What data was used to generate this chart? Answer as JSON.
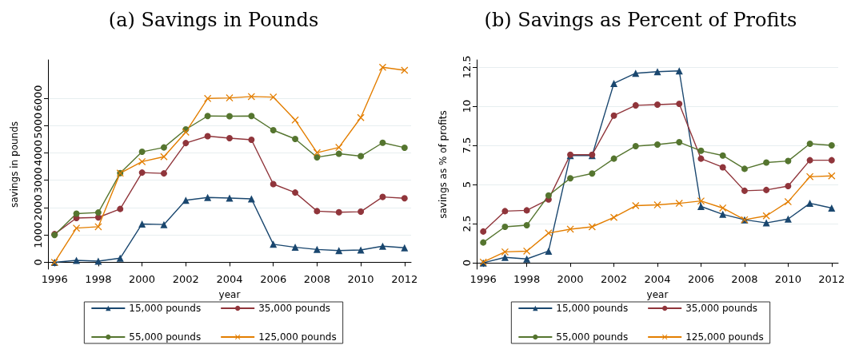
{
  "chart_data": [
    {
      "type": "line",
      "title": "(a) Savings in Pounds",
      "xlabel": "year",
      "ylabel": "savings in pounds",
      "x": [
        1996,
        1997,
        1998,
        1999,
        2000,
        2001,
        2002,
        2003,
        2004,
        2005,
        2006,
        2007,
        2008,
        2009,
        2010,
        2011,
        2012
      ],
      "series": [
        {
          "name": "15,000 pounds",
          "color": "#1a476f",
          "marker": "triangle",
          "values": [
            0,
            70,
            40,
            150,
            1400,
            1380,
            2270,
            2370,
            2350,
            2320,
            660,
            550,
            470,
            430,
            450,
            590,
            530
          ]
        },
        {
          "name": "35,000 pounds",
          "color": "#90353b",
          "marker": "circle",
          "values": [
            1030,
            1620,
            1640,
            1950,
            3280,
            3250,
            4360,
            4610,
            4540,
            4480,
            2860,
            2550,
            1870,
            1830,
            1850,
            2390,
            2340
          ]
        },
        {
          "name": "55,000 pounds",
          "color": "#55752f",
          "marker": "circle",
          "values": [
            1000,
            1780,
            1820,
            3260,
            4040,
            4200,
            4860,
            5350,
            5340,
            5350,
            4830,
            4510,
            3840,
            3970,
            3880,
            4370,
            4190
          ]
        },
        {
          "name": "125,000 pounds",
          "color": "#e37e00",
          "marker": "cross",
          "values": [
            0,
            1250,
            1300,
            3260,
            3680,
            3860,
            4760,
            5990,
            6010,
            6060,
            6040,
            5200,
            4010,
            4200,
            5290,
            7130,
            7020
          ]
        }
      ],
      "xlim": [
        1995.7,
        2012.3
      ],
      "xticks": [
        1996,
        1998,
        2000,
        2002,
        2004,
        2006,
        2008,
        2010,
        2012
      ],
      "ylim": [
        -250,
        7400
      ],
      "yticks": [
        0,
        1000,
        2000,
        3000,
        4000,
        5000,
        6000
      ],
      "grid": "y",
      "legend": "bottom"
    },
    {
      "type": "line",
      "title": "(b) Savings as Percent of Profits",
      "xlabel": "year",
      "ylabel": "savings as % of profits",
      "x": [
        1996,
        1997,
        1998,
        1999,
        2000,
        2001,
        2002,
        2003,
        2004,
        2005,
        2006,
        2007,
        2008,
        2009,
        2010,
        2011,
        2012
      ],
      "series": [
        {
          "name": "15,000 pounds",
          "color": "#1a476f",
          "marker": "triangle",
          "values": [
            0,
            0.35,
            0.25,
            0.75,
            6.85,
            6.85,
            11.45,
            12.1,
            12.2,
            12.25,
            3.6,
            3.1,
            2.75,
            2.55,
            2.8,
            3.8,
            3.5
          ]
        },
        {
          "name": "35,000 pounds",
          "color": "#90353b",
          "marker": "circle",
          "values": [
            2.0,
            3.3,
            3.35,
            4.05,
            6.9,
            6.9,
            9.4,
            10.05,
            10.1,
            10.15,
            6.65,
            6.1,
            4.6,
            4.65,
            4.9,
            6.55,
            6.55
          ]
        },
        {
          "name": "55,000 pounds",
          "color": "#55752f",
          "marker": "circle",
          "values": [
            1.3,
            2.3,
            2.4,
            4.3,
            5.4,
            5.7,
            6.65,
            7.45,
            7.55,
            7.7,
            7.15,
            6.85,
            6.0,
            6.4,
            6.5,
            7.6,
            7.5
          ]
        },
        {
          "name": "125,000 pounds",
          "color": "#e37e00",
          "marker": "cross",
          "values": [
            0.05,
            0.7,
            0.75,
            1.9,
            2.15,
            2.3,
            2.9,
            3.65,
            3.7,
            3.8,
            3.95,
            3.5,
            2.75,
            3.0,
            3.9,
            5.5,
            5.55
          ]
        }
      ],
      "xlim": [
        1995.7,
        2012.3
      ],
      "xticks": [
        1996,
        1998,
        2000,
        2002,
        2004,
        2006,
        2008,
        2010,
        2012
      ],
      "ylim": [
        -0.4,
        12.95
      ],
      "yticks": [
        0,
        2.5,
        5,
        7.5,
        10,
        12.5
      ],
      "grid": "y",
      "legend": "bottom"
    }
  ]
}
